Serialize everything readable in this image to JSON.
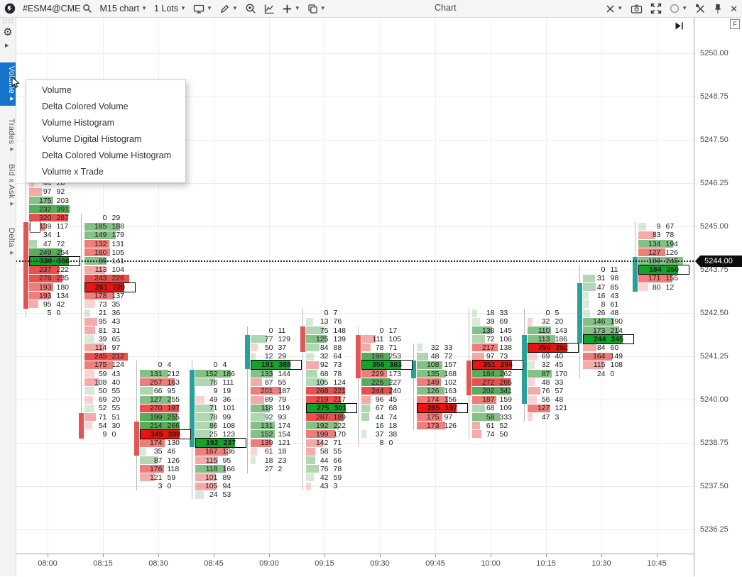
{
  "toolbar": {
    "symbol": "#ESM4@CME",
    "timeframe": "M15 chart",
    "lots": "1 Lots",
    "title": "Chart",
    "left_icons": [
      "app-logo",
      "search",
      "monitor",
      "pencil",
      "zoom-in",
      "chart-style",
      "add-indicator",
      "layout"
    ],
    "right_icons": [
      "crosshair",
      "camera",
      "fullscreen",
      "shape-circle",
      "tools",
      "pin",
      "close"
    ]
  },
  "sidebar": {
    "icons": [
      "grip",
      "gear",
      "expand-arrow"
    ],
    "tabs": [
      {
        "label": "Volume",
        "selected": true
      },
      {
        "label": "Trades",
        "selected": false
      },
      {
        "label": "Bid x Ask",
        "selected": false
      },
      {
        "label": "Delta",
        "selected": false
      }
    ]
  },
  "context_menu": {
    "items": [
      "Volume",
      "Delta Colored Volume",
      "Volume Histogram",
      "Volume Digital Histogram",
      "Delta Colored Volume Histogram",
      "Volume x Trade"
    ]
  },
  "price_axis": {
    "labels": [
      "5250.00",
      "5248.75",
      "5247.50",
      "5246.25",
      "5245.00",
      "5243.75",
      "5242.50",
      "5241.25",
      "5240.00",
      "5238.75",
      "5237.50",
      "5236.25"
    ],
    "current_price": "5244.00",
    "corner_icon": "F"
  },
  "time_axis": {
    "labels": [
      "08:00",
      "08:15",
      "08:30",
      "08:45",
      "09:00",
      "09:15",
      "09:30",
      "09:45",
      "10:00",
      "10:15",
      "10:30",
      "10:45"
    ]
  },
  "colors": {
    "accent_blue": "#1574cc",
    "up_candle": "#2aa198",
    "down_candle": "#e25555",
    "poc_up": "#12a32a",
    "poc_down": "#e81410",
    "row_up_rgb": "67,160,71",
    "row_down_rgb": "229,57,53",
    "badge_bg": "#0d0d0d"
  },
  "chart_data": {
    "type": "footprint",
    "instrument": "#ESM4@CME",
    "period": "M15",
    "dotted_price": 5244.0,
    "tick_size": 0.25,
    "bars": [
      {
        "time": "08:00",
        "top_price": 5246.25,
        "poc_index": 9,
        "candle": {
          "dir": "down",
          "body_top": 5245.0,
          "body_bottom": 5242.75
        },
        "rows": [
          [
            44,
            28
          ],
          [
            97,
            92
          ],
          [
            175,
            203
          ],
          [
            232,
            391
          ],
          [
            320,
            287
          ],
          [
            139,
            117
          ],
          [
            34,
            1
          ],
          [
            47,
            72
          ],
          [
            249,
            254
          ],
          [
            339,
            366
          ],
          [
            237,
            222
          ],
          [
            276,
            235
          ],
          [
            193,
            180
          ],
          [
            193,
            134
          ],
          [
            95,
            42
          ],
          [
            5,
            0
          ]
        ]
      },
      {
        "time": "08:15",
        "top_price": 5245.25,
        "poc_index": 8,
        "candle": {
          "dir": "down",
          "body_top": 5239.5,
          "body_bottom": 5239.0
        },
        "rows": [
          [
            0,
            29
          ],
          [
            185,
            188
          ],
          [
            149,
            179
          ],
          [
            132,
            131
          ],
          [
            160,
            105
          ],
          [
            89,
            141
          ],
          [
            113,
            104
          ],
          [
            243,
            226
          ],
          [
            261,
            220
          ],
          [
            178,
            137
          ],
          [
            73,
            35
          ],
          [
            21,
            36
          ],
          [
            95,
            43
          ],
          [
            81,
            31
          ],
          [
            39,
            65
          ],
          [
            114,
            97
          ],
          [
            245,
            212
          ],
          [
            175,
            124
          ],
          [
            59,
            43
          ],
          [
            108,
            40
          ],
          [
            50,
            55
          ],
          [
            69,
            20
          ],
          [
            52,
            55
          ],
          [
            71,
            51
          ],
          [
            54,
            30
          ],
          [
            9,
            0
          ]
        ]
      },
      {
        "time": "08:30",
        "top_price": 5241.0,
        "poc_index": 8,
        "candle": {
          "dir": "down",
          "body_top": 5239.25,
          "body_bottom": 5238.5
        },
        "rows": [
          [
            0,
            4
          ],
          [
            131,
            212
          ],
          [
            257,
            163
          ],
          [
            66,
            95
          ],
          [
            127,
            255
          ],
          [
            270,
            197
          ],
          [
            199,
            255
          ],
          [
            214,
            266
          ],
          [
            345,
            209
          ],
          [
            174,
            130
          ],
          [
            35,
            46
          ],
          [
            87,
            126
          ],
          [
            176,
            118
          ],
          [
            121,
            59
          ],
          [
            3,
            0
          ]
        ]
      },
      {
        "time": "08:45",
        "top_price": 5241.0,
        "poc_index": 9,
        "candle": {
          "dir": "up",
          "body_top": 5240.75,
          "body_bottom": 5238.75
        },
        "rows": [
          [
            0,
            4
          ],
          [
            152,
            186
          ],
          [
            76,
            111
          ],
          [
            9,
            19
          ],
          [
            49,
            36
          ],
          [
            71,
            101
          ],
          [
            78,
            99
          ],
          [
            86,
            108
          ],
          [
            25,
            123
          ],
          [
            192,
            237
          ],
          [
            167,
            136
          ],
          [
            115,
            95
          ],
          [
            118,
            166
          ],
          [
            101,
            89
          ],
          [
            105,
            94
          ],
          [
            24,
            53
          ]
        ]
      },
      {
        "time": "09:00",
        "top_price": 5242.0,
        "poc_index": 4,
        "candle": {
          "dir": "up",
          "body_top": 5241.75,
          "body_bottom": 5241.0
        },
        "rows": [
          [
            0,
            11
          ],
          [
            77,
            129
          ],
          [
            50,
            37
          ],
          [
            12,
            29
          ],
          [
            191,
            388
          ],
          [
            133,
            144
          ],
          [
            87,
            55
          ],
          [
            201,
            187
          ],
          [
            89,
            79
          ],
          [
            118,
            119
          ],
          [
            92,
            93
          ],
          [
            131,
            174
          ],
          [
            152,
            154
          ],
          [
            139,
            121
          ],
          [
            61,
            18
          ],
          [
            18,
            23
          ],
          [
            27,
            2
          ]
        ]
      },
      {
        "time": "09:15",
        "top_price": 5242.5,
        "poc_index": 11,
        "candle": {
          "dir": "down",
          "body_top": 5242.0,
          "body_bottom": 5241.5
        },
        "rows": [
          [
            0,
            7
          ],
          [
            13,
            76
          ],
          [
            75,
            148
          ],
          [
            125,
            139
          ],
          [
            84,
            88
          ],
          [
            32,
            64
          ],
          [
            92,
            73
          ],
          [
            68,
            78
          ],
          [
            105,
            124
          ],
          [
            268,
            221
          ],
          [
            219,
            217
          ],
          [
            275,
            301
          ],
          [
            287,
            189
          ],
          [
            192,
            222
          ],
          [
            199,
            170
          ],
          [
            142,
            71
          ],
          [
            58,
            55
          ],
          [
            44,
            66
          ],
          [
            76,
            78
          ],
          [
            42,
            59
          ],
          [
            43,
            3
          ]
        ]
      },
      {
        "time": "09:30",
        "top_price": 5242.0,
        "poc_index": 4,
        "candle": {
          "dir": "down",
          "body_top": 5241.75,
          "body_bottom": 5240.75
        },
        "rows": [
          [
            0,
            17
          ],
          [
            111,
            105
          ],
          [
            78,
            71
          ],
          [
            196,
            253
          ],
          [
            356,
            363
          ],
          [
            229,
            173
          ],
          [
            225,
            227
          ],
          [
            244,
            240
          ],
          [
            96,
            45
          ],
          [
            67,
            68
          ],
          [
            44,
            74
          ],
          [
            16,
            18
          ],
          [
            37,
            38
          ],
          [
            8,
            0
          ]
        ]
      },
      {
        "time": "09:45",
        "top_price": 5241.5,
        "poc_index": 7,
        "candle": {
          "dir": "up",
          "body_top": 5241.0,
          "body_bottom": 5240.75
        },
        "rows": [
          [
            32,
            33
          ],
          [
            48,
            72
          ],
          [
            108,
            157
          ],
          [
            135,
            168
          ],
          [
            149,
            102
          ],
          [
            126,
            163
          ],
          [
            174,
            156
          ],
          [
            285,
            197
          ],
          [
            175,
            97
          ],
          [
            173,
            126
          ]
        ]
      },
      {
        "time": "10:00",
        "top_price": 5242.5,
        "poc_index": 6,
        "candle": {
          "dir": "down",
          "body_top": 5241.0,
          "body_bottom": 5240.25
        },
        "rows": [
          [
            18,
            33
          ],
          [
            39,
            69
          ],
          [
            138,
            145
          ],
          [
            72,
            106
          ],
          [
            217,
            138
          ],
          [
            97,
            73
          ],
          [
            351,
            294
          ],
          [
            184,
            262
          ],
          [
            272,
            265
          ],
          [
            202,
            341
          ],
          [
            187,
            159
          ],
          [
            68,
            109
          ],
          [
            58,
            333
          ],
          [
            61,
            52
          ],
          [
            74,
            50
          ]
        ]
      },
      {
        "time": "10:15",
        "top_price": 5242.5,
        "poc_index": 4,
        "candle": {
          "dir": "up",
          "body_top": 5241.75,
          "body_bottom": 5240.0
        },
        "rows": [
          [
            0,
            5
          ],
          [
            32,
            20
          ],
          [
            110,
            143
          ],
          [
            113,
            186
          ],
          [
            290,
            202
          ],
          [
            69,
            40
          ],
          [
            32,
            45
          ],
          [
            87,
            170
          ],
          [
            48,
            33
          ],
          [
            76,
            57
          ],
          [
            56,
            48
          ],
          [
            127,
            121
          ],
          [
            47,
            3
          ]
        ]
      },
      {
        "time": "10:30",
        "top_price": 5243.75,
        "poc_index": 8,
        "candle": {
          "dir": "up",
          "body_top": 5243.25,
          "body_bottom": 5241.75
        },
        "rows": [
          [
            0,
            11
          ],
          [
            31,
            98
          ],
          [
            47,
            85
          ],
          [
            16,
            43
          ],
          [
            8,
            61
          ],
          [
            26,
            48
          ],
          [
            146,
            190
          ],
          [
            173,
            214
          ],
          [
            244,
            245
          ],
          [
            84,
            60
          ],
          [
            164,
            149
          ],
          [
            115,
            108
          ],
          [
            24,
            0
          ]
        ]
      },
      {
        "time": "10:45",
        "top_price": 5245.0,
        "poc_index": 5,
        "candle": {
          "dir": "up",
          "body_top": 5244.0,
          "body_bottom": 5243.25
        },
        "rows": [
          [
            9,
            67
          ],
          [
            83,
            78
          ],
          [
            134,
            194
          ],
          [
            127,
            126
          ],
          [
            180,
            245
          ],
          [
            184,
            250
          ],
          [
            171,
            155
          ],
          [
            80,
            12
          ]
        ]
      }
    ]
  }
}
